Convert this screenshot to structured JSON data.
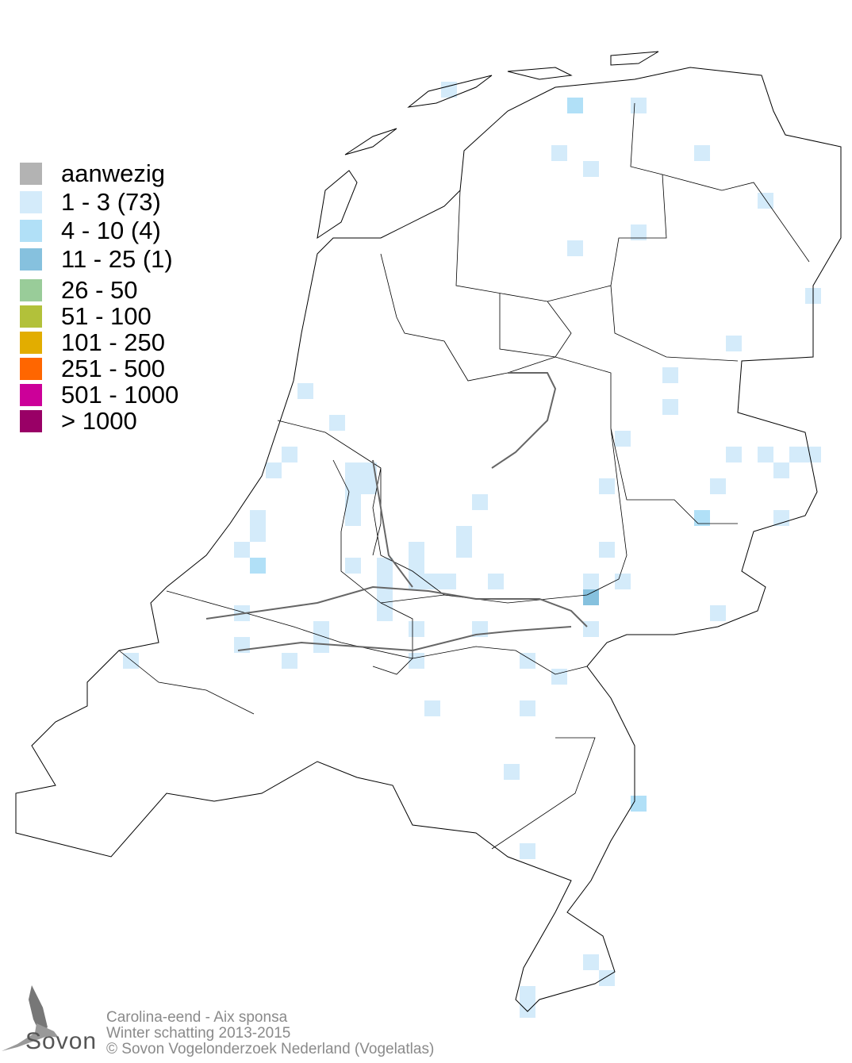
{
  "legend": {
    "items": [
      {
        "label": "aanwezig",
        "color": "#b3b3b3"
      },
      {
        "label": "1 - 3 (73)",
        "color": "#d4ebfa"
      },
      {
        "label": "4 - 10 (4)",
        "color": "#b1e0f7"
      },
      {
        "label": "11 - 25 (1)",
        "color": "#86c1de"
      },
      {
        "label": "26 - 50",
        "color": "#99cc99"
      },
      {
        "label": "51 - 100",
        "color": "#b2c13a"
      },
      {
        "label": "101 - 250",
        "color": "#e2ad00"
      },
      {
        "label": "251 - 500",
        "color": "#ff6600"
      },
      {
        "label": "501 - 1000",
        "color": "#cc0099"
      },
      {
        "label": "> 1000",
        "color": "#990066"
      }
    ]
  },
  "footer": {
    "species": "Carolina-eend - Aix sponsa",
    "period": "Winter schatting 2013-2015",
    "copyright": "© Sovon Vogelonderzoek Nederland (Vogelatlas)"
  },
  "logo": {
    "text": "Sovon"
  }
}
